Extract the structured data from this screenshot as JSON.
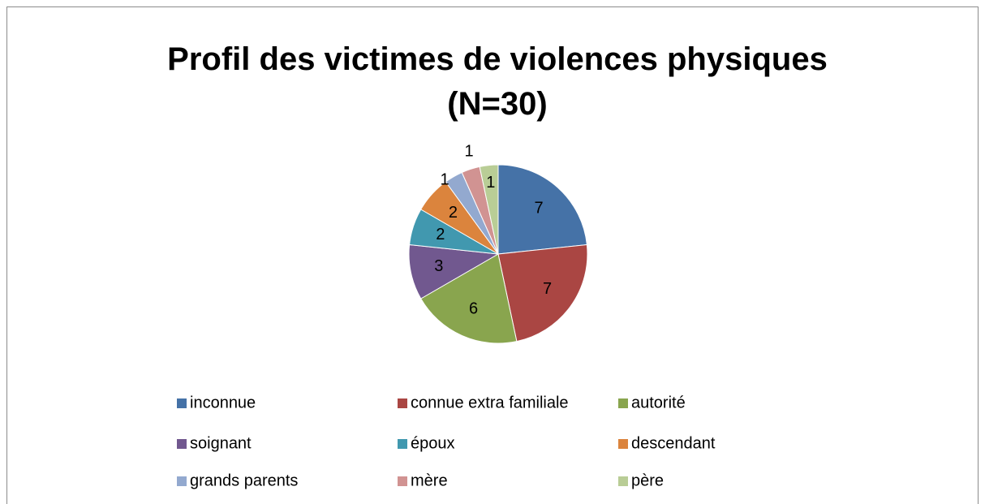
{
  "chart_data": {
    "type": "pie",
    "title": "Profil des victimes de violences physiques (N=30)",
    "categories": [
      "inconnue",
      "connue extra familiale",
      "autorité",
      "soignant",
      "époux",
      "descendant",
      "grands parents",
      "mère",
      "père"
    ],
    "values": [
      7,
      7,
      6,
      3,
      2,
      2,
      1,
      1,
      1
    ],
    "colors": [
      "#4572A7",
      "#AA4643",
      "#89A54E",
      "#71588F",
      "#4198AF",
      "#DB843D",
      "#93A9CF",
      "#D19392",
      "#B9CD96"
    ],
    "legend": "bottom"
  }
}
